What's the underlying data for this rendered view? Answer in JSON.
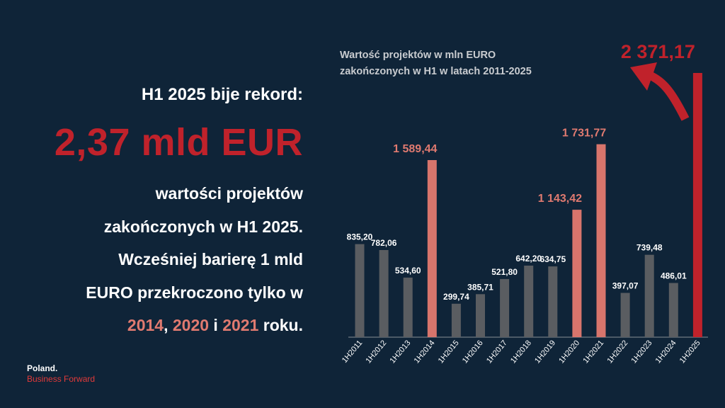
{
  "left": {
    "headline": "H1 2025 bije rekord:",
    "big_value": "2,37 mld EUR",
    "line1": "wartości projektów",
    "line2": "zakończonych w H1 2025.",
    "line3": "Wcześniej barierę 1 mld",
    "line4": "EURO przekroczono tylko w",
    "year1": "2014",
    "sep1": ", ",
    "year2": "2020",
    "sep2": " i ",
    "year3": "2021",
    "tail": " roku."
  },
  "logo": {
    "line1": "Poland.",
    "line2": "Business Forward"
  },
  "colors": {
    "background": "#0f2438",
    "gray_bar": "#5a5d61",
    "salmon_bar": "#d8756c",
    "red_bar": "#c0222b",
    "salmon_text": "#e07a70",
    "red_text": "#c0222b"
  },
  "chart_data": {
    "type": "bar",
    "title_line1": "Wartość projektów w mln EURO",
    "title_line2": "zakończonych w H1 w latach 2011-2025",
    "categories": [
      "1H2011",
      "1H2012",
      "1H2013",
      "1H2014",
      "1H2015",
      "1H2016",
      "1H2017",
      "1H2018",
      "1H2019",
      "1H2020",
      "1H2021",
      "1H2022",
      "1H2023",
      "1H2024",
      "1H2025"
    ],
    "values": [
      835.2,
      782.06,
      534.6,
      1589.44,
      299.74,
      385.71,
      521.8,
      642.2,
      634.75,
      1143.42,
      1731.77,
      397.07,
      739.48,
      486.01,
      2371.17
    ],
    "labels": [
      "835,20",
      "782,06",
      "534,60",
      "1 589,44",
      "299,74",
      "385,71",
      "521,80",
      "642,20",
      "634,75",
      "1 143,42",
      "1 731,77",
      "397,07",
      "739,48",
      "486,01",
      "2 371,17"
    ],
    "highlight": [
      "gray",
      "gray",
      "gray",
      "salmon",
      "gray",
      "gray",
      "gray",
      "gray",
      "gray",
      "salmon",
      "salmon",
      "gray",
      "gray",
      "gray",
      "red"
    ],
    "xlabel": "",
    "ylabel": "",
    "ylim": [
      0,
      2371.17
    ],
    "grid": false,
    "legend": "none"
  }
}
